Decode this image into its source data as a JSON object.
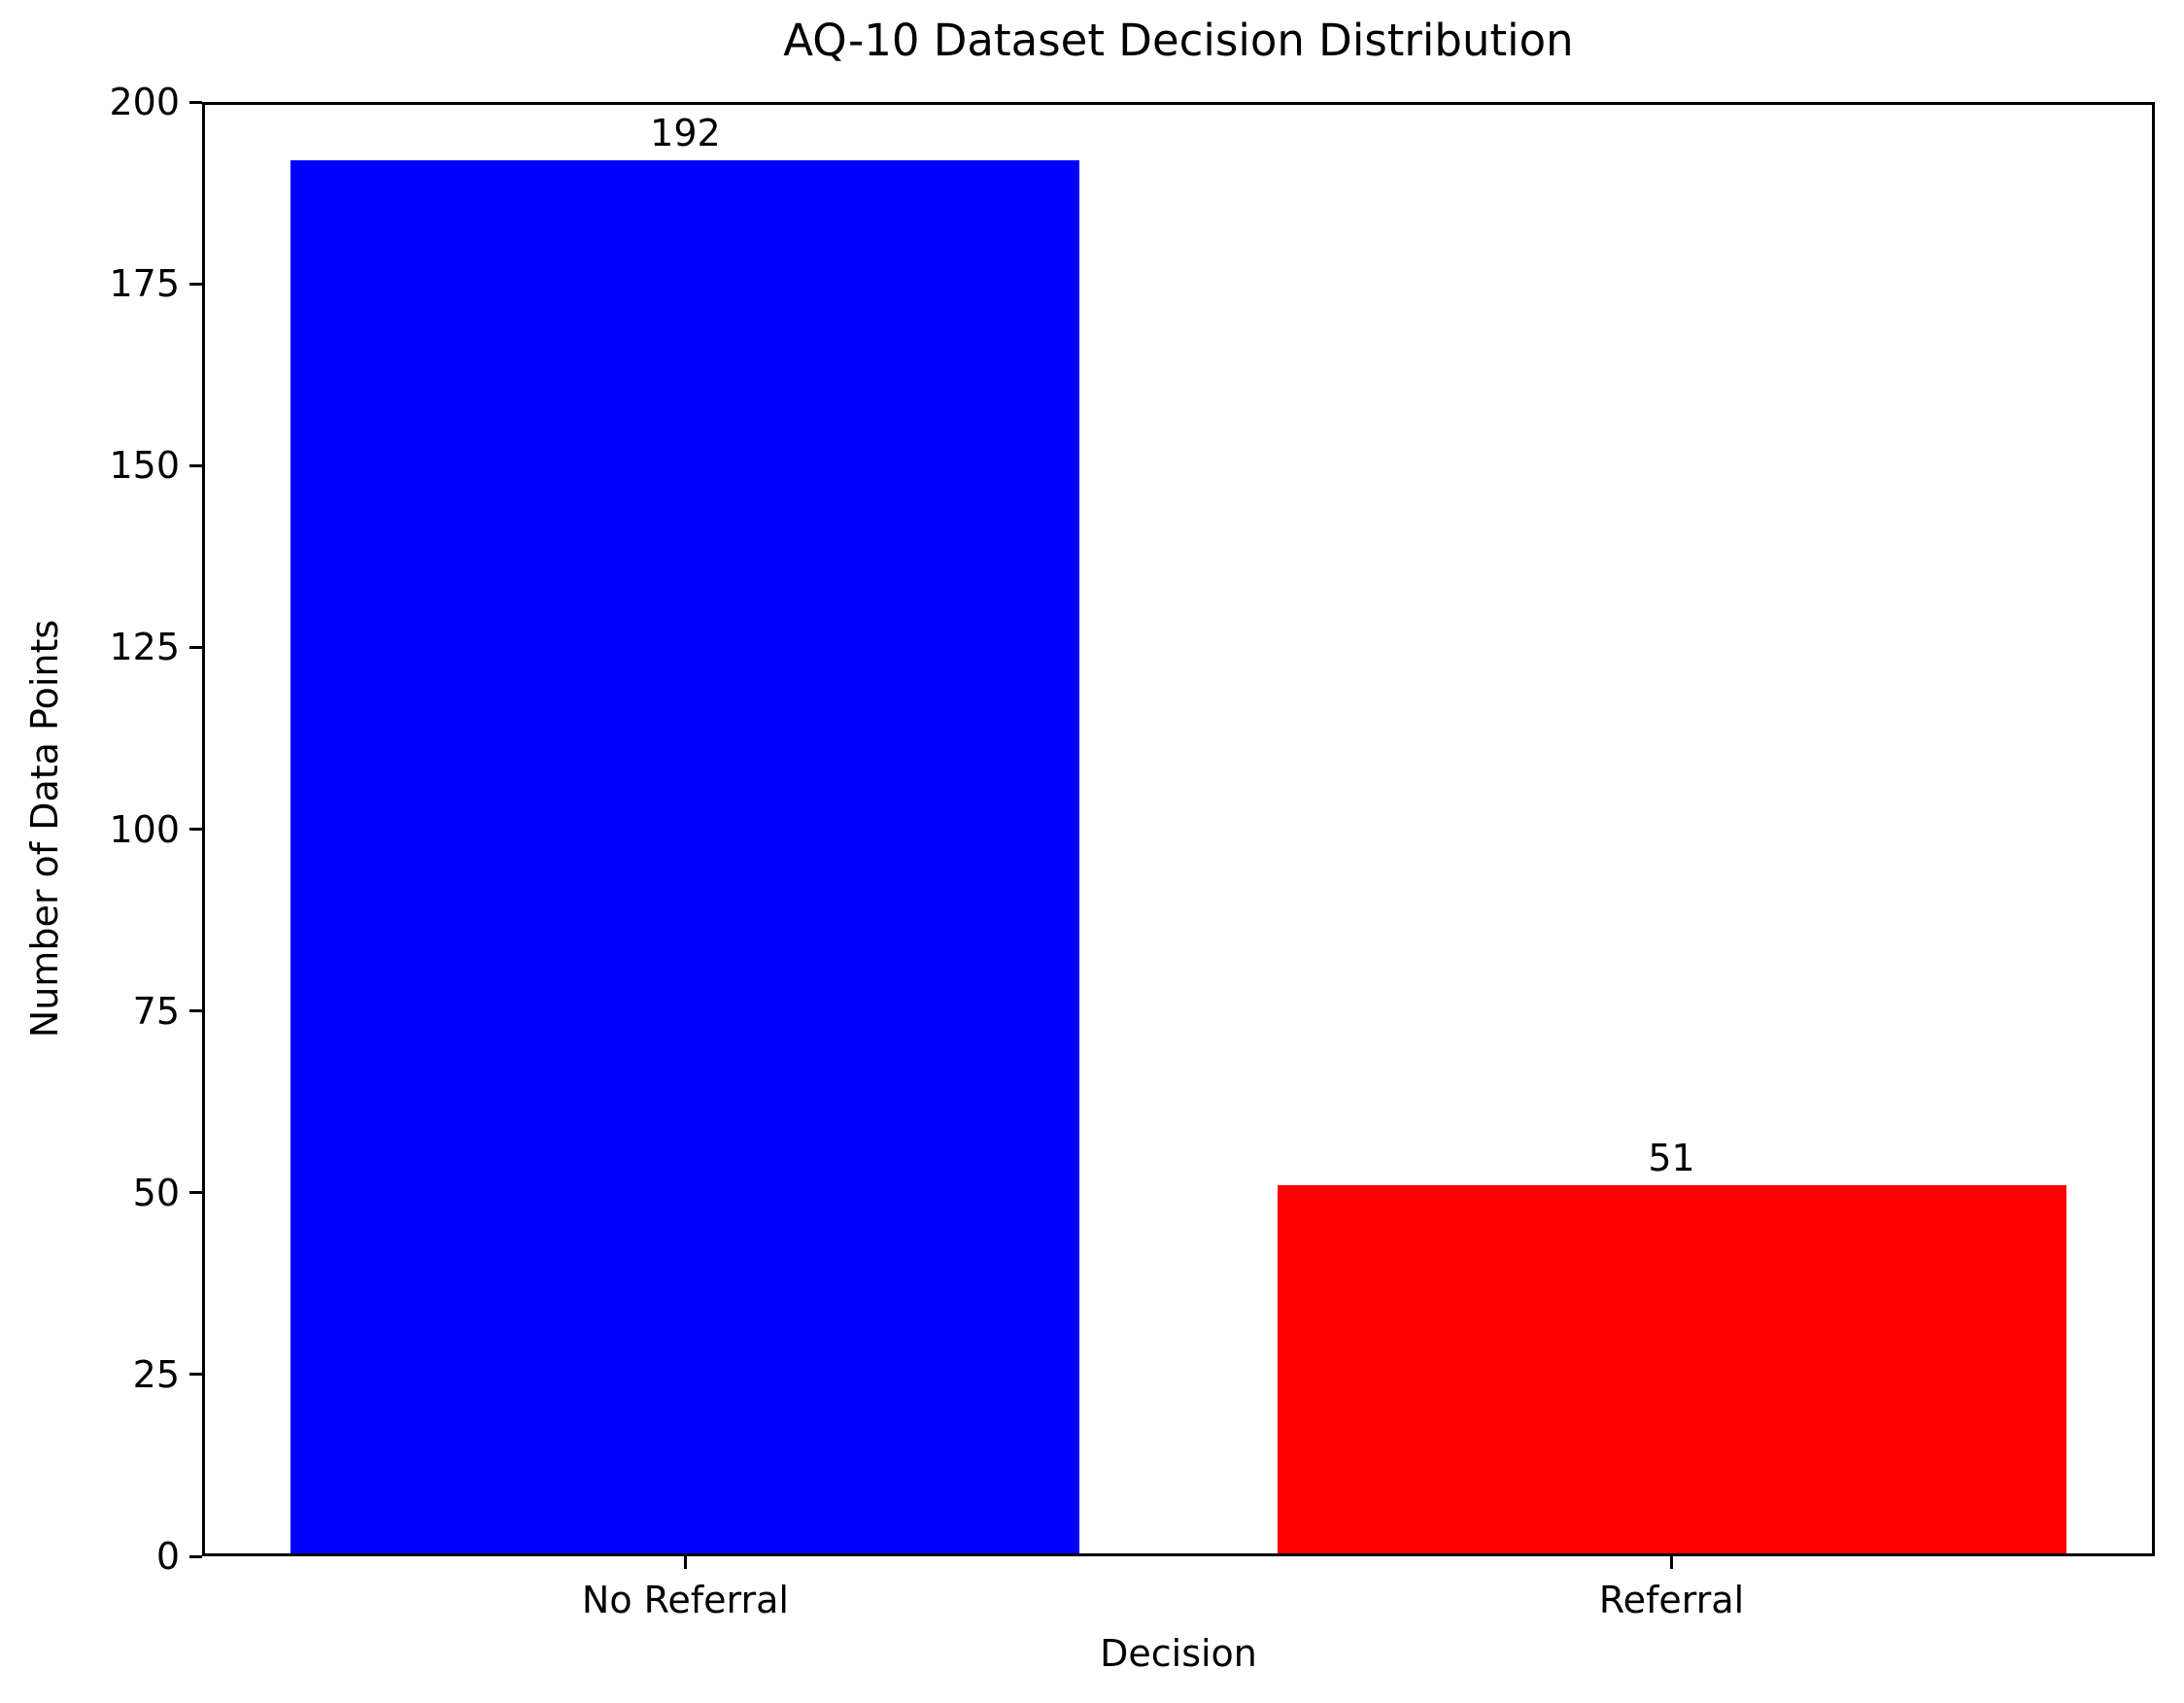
{
  "chart_data": {
    "type": "bar",
    "title": "AQ-10 Dataset Decision Distribution",
    "xlabel": "Decision",
    "ylabel": "Number of Data Points",
    "categories": [
      "No Referral",
      "Referral"
    ],
    "values": [
      192,
      51
    ],
    "value_labels": [
      "192",
      "51"
    ],
    "bar_colors": [
      "#0000ff",
      "#ff0000"
    ],
    "yticks": [
      0,
      25,
      50,
      75,
      100,
      125,
      150,
      175,
      200
    ],
    "ylim": [
      0,
      200
    ],
    "xlim": [
      -0.49,
      1.49
    ],
    "bar_width": 0.8,
    "grid": false,
    "legend_position": "none"
  },
  "colors": {
    "background": "#ffffff",
    "spine": "#000000",
    "text": "#000000",
    "bar_no_referral": "#0000ff",
    "bar_referral": "#ff0000"
  }
}
